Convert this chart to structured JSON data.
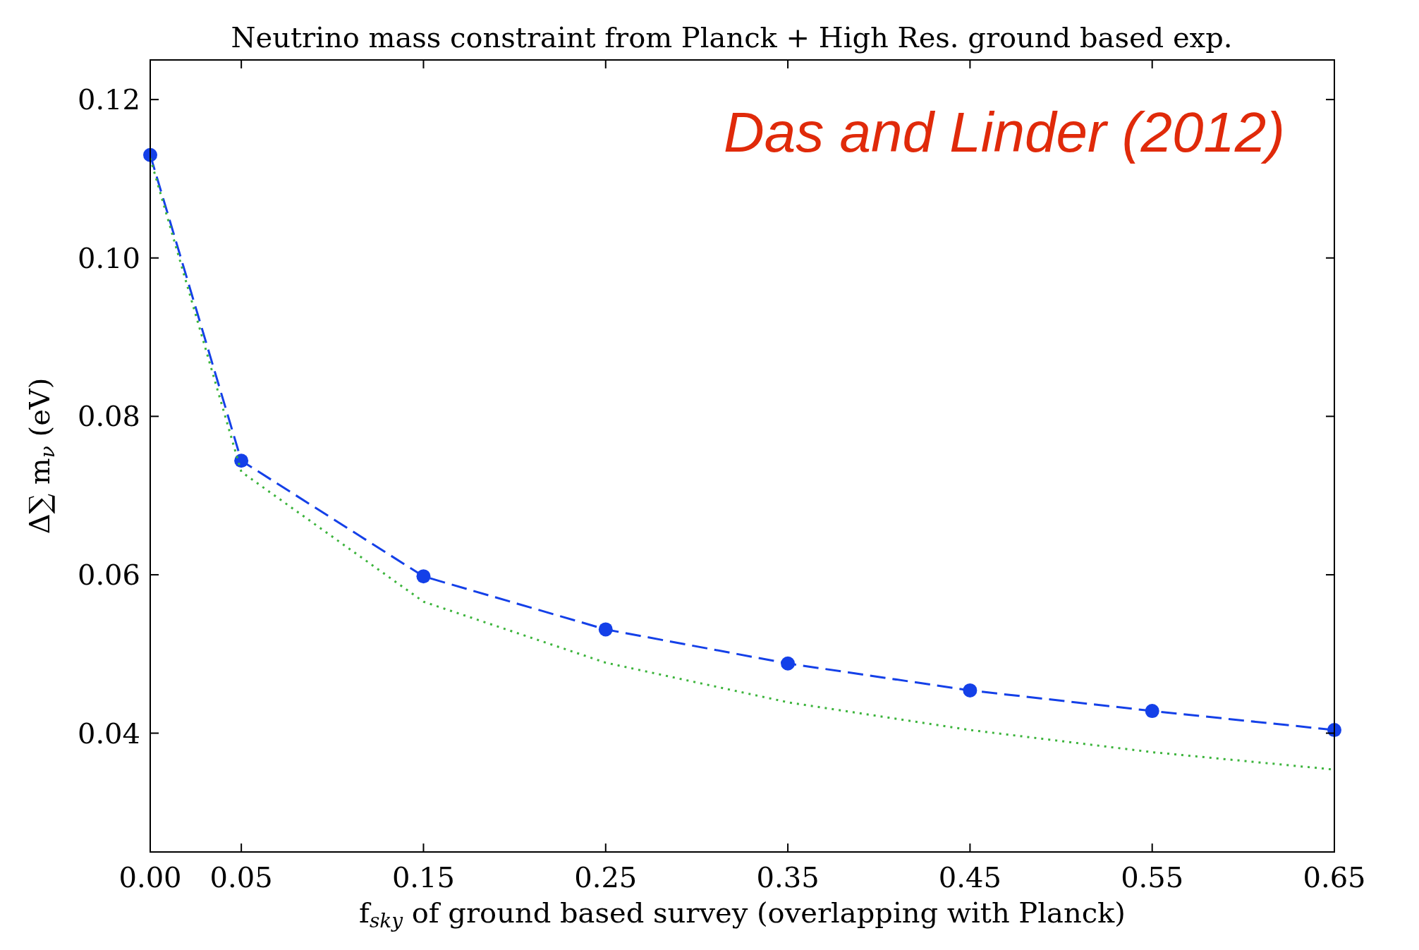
{
  "chart_data": {
    "type": "line",
    "title": "Neutrino mass constraint from Planck + High Res. ground based exp.",
    "xlabel": "f$_{sky}$ of ground based survey (overlapping with Planck)",
    "ylabel": "Δ∑ m$_{ν}$ (eV)",
    "annotations": [
      "Das and Linder (2012)"
    ],
    "x": [
      0,
      0.05,
      0.15,
      0.25,
      0.35,
      0.45,
      0.55,
      0.65
    ],
    "series": [
      {
        "color": "#1440e8",
        "values": [
          0.113,
          0.0744,
          0.0598,
          0.0531,
          0.0488,
          0.0454,
          0.0428,
          0.0404
        ],
        "marker": "circle",
        "line_style": "dashed"
      },
      {
        "color": "#3cb43c",
        "values": [
          0.1126,
          0.073,
          0.0566,
          0.0489,
          0.0439,
          0.0404,
          0.0376,
          0.0354
        ],
        "marker": "none",
        "line_style": "dotted"
      }
    ],
    "xlim": [
      0,
      0.65
    ],
    "xticks": [
      {
        "value": 0,
        "label": "0.00"
      },
      0.05,
      0.15,
      0.25,
      0.35,
      0.45,
      0.55,
      0.65
    ],
    "ylim": [
      0.025,
      0.125
    ],
    "yticks": [
      0.04,
      0.06,
      0.08,
      {
        "value": 0.1,
        "label": "0.10"
      },
      0.12
    ],
    "grid": false
  }
}
